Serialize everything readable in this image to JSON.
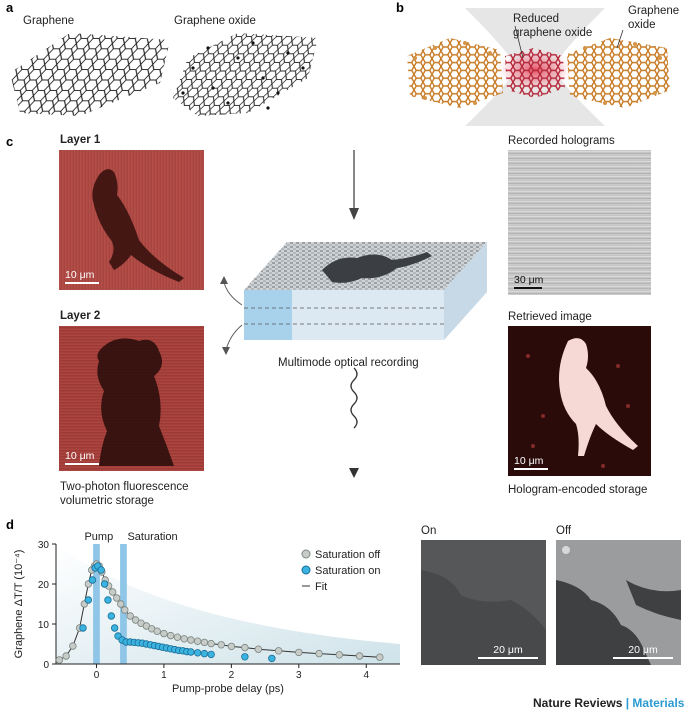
{
  "panel_a": {
    "letter": "a",
    "label_graphene": "Graphene",
    "label_graphene_oxide": "Graphene oxide"
  },
  "panel_b": {
    "letter": "b",
    "label_reduced": "Reduced\ngraphene oxide",
    "label_graphene_oxide": "Graphene\noxide"
  },
  "panel_c": {
    "letter": "c",
    "layer1": "Layer 1",
    "layer2": "Layer 2",
    "scale_layer1": "10 μm",
    "scale_layer2": "10 μm",
    "recorded_holograms": "Recorded holograms",
    "scale_holograms": "30 μm",
    "retrieved_image": "Retrieved image",
    "scale_retrieved": "10 μm",
    "multimode": "Multimode optical recording",
    "two_photon": "Two-photon fluorescence\nvolumetric storage",
    "hologram_encoded": "Hologram-encoded storage"
  },
  "panel_d": {
    "letter": "d",
    "pump": "Pump",
    "saturation": "Saturation",
    "on_label": "On",
    "off_label": "Off",
    "scale_on": "20 μm",
    "scale_off": "20 μm"
  },
  "chart_data": {
    "type": "scatter",
    "xlabel": "Pump-probe delay (ps)",
    "ylabel": "Graphene ΔT/T (10⁻⁴)",
    "xlim": [
      -0.6,
      4.5
    ],
    "ylim": [
      0,
      30
    ],
    "xticks": [
      "0",
      "1",
      "2",
      "3",
      "4"
    ],
    "yticks": [
      "0",
      "10",
      "20",
      "30"
    ],
    "legend_position": "top-right",
    "series": [
      {
        "name": "Saturation off",
        "color": "#c7ccc9",
        "x": [
          -0.55,
          -0.45,
          -0.35,
          -0.25,
          -0.18,
          -0.12,
          -0.07,
          -0.03,
          0.0,
          0.04,
          0.08,
          0.13,
          0.18,
          0.24,
          0.3,
          0.36,
          0.42,
          0.5,
          0.58,
          0.66,
          0.74,
          0.82,
          0.9,
          1.0,
          1.1,
          1.2,
          1.3,
          1.4,
          1.5,
          1.6,
          1.7,
          1.85,
          2.0,
          2.2,
          2.4,
          2.7,
          3.0,
          3.3,
          3.6,
          3.9,
          4.2
        ],
        "y": [
          1,
          2,
          4.5,
          9,
          15,
          20,
          23.5,
          24.5,
          25,
          24.5,
          23,
          21,
          19.5,
          18,
          16.5,
          15,
          13.5,
          12,
          11,
          10.2,
          9.5,
          8.8,
          8.2,
          7.6,
          7.1,
          6.7,
          6.3,
          6,
          5.7,
          5.4,
          5.1,
          4.8,
          4.4,
          4.1,
          3.7,
          3.3,
          2.9,
          2.6,
          2.3,
          2,
          1.7
        ]
      },
      {
        "name": "Saturation on",
        "color": "#3ab3e0",
        "x": [
          -0.2,
          -0.12,
          -0.06,
          -0.02,
          0.02,
          0.07,
          0.12,
          0.17,
          0.22,
          0.27,
          0.32,
          0.38,
          0.44,
          0.5,
          0.56,
          0.62,
          0.68,
          0.74,
          0.8,
          0.86,
          0.92,
          0.98,
          1.04,
          1.1,
          1.16,
          1.22,
          1.28,
          1.34,
          1.4,
          1.5,
          1.6,
          1.7,
          2.2,
          2.6
        ],
        "y": [
          9,
          16,
          21,
          24,
          24.5,
          23.5,
          20,
          16,
          12,
          9,
          7,
          6,
          5.5,
          5.5,
          5.4,
          5.3,
          5.2,
          5,
          4.8,
          4.6,
          4.4,
          4.2,
          4,
          3.8,
          3.6,
          3.4,
          3.3,
          3.1,
          3,
          2.8,
          2.6,
          2.4,
          1.8,
          1.4
        ]
      },
      {
        "name": "Fit",
        "color": "#333333",
        "type": "line"
      }
    ],
    "annotations": [
      "Pump",
      "Saturation"
    ]
  }
}
